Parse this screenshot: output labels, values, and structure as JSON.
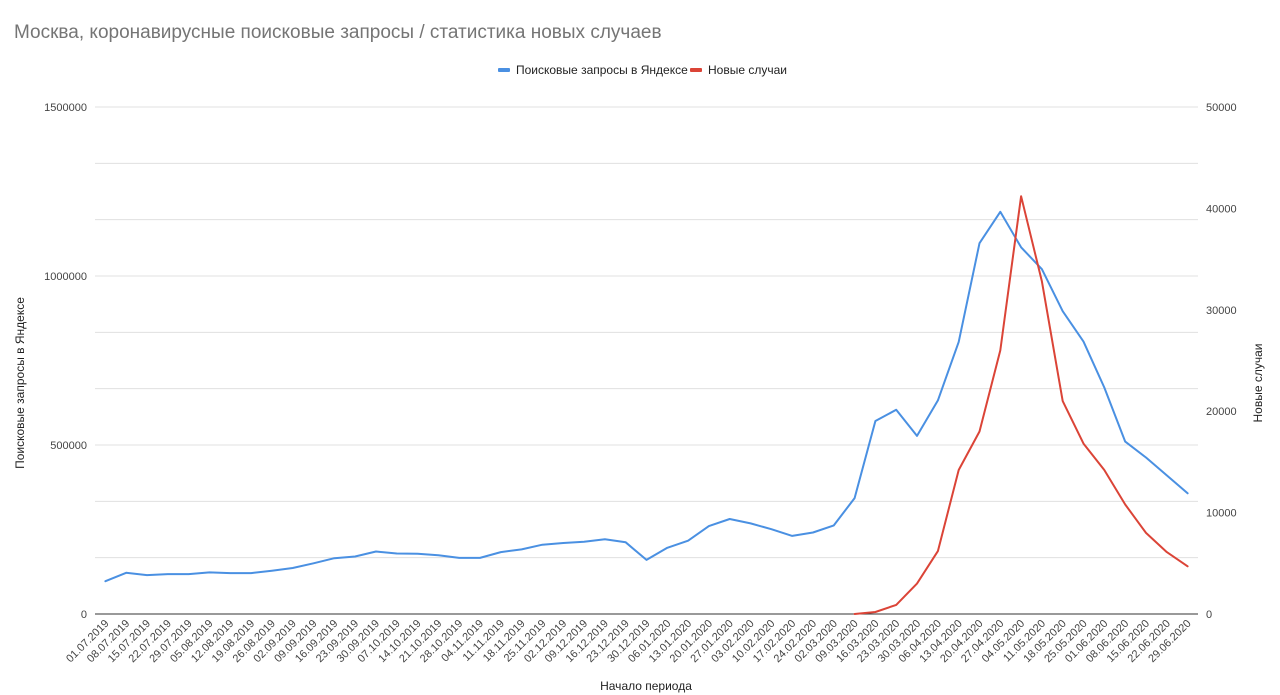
{
  "chart_data": {
    "type": "line",
    "title": "Москва, коронавирусные поисковые запросы / статистика новых случаев",
    "xlabel": "Начало периода",
    "ylabel_left": "Поисковые запросы в Яндексе",
    "ylabel_right": "Новые случаи",
    "ylim_left": [
      0,
      1500000
    ],
    "ylim_right": [
      0,
      50000
    ],
    "yticks_left": [
      "0",
      "500000",
      "1000000",
      "1500000"
    ],
    "yticks_right": [
      "0",
      "10000",
      "20000",
      "30000",
      "40000",
      "50000"
    ],
    "grid": true,
    "legend_position": "top",
    "colors": {
      "search": "#4a90e2",
      "cases": "#db4437",
      "grid": "#e0e0e0",
      "title": "#757575"
    },
    "categories": [
      "01.07.2019",
      "08.07.2019",
      "15.07.2019",
      "22.07.2019",
      "29.07.2019",
      "05.08.2019",
      "12.08.2019",
      "19.08.2019",
      "26.08.2019",
      "02.09.2019",
      "09.09.2019",
      "16.09.2019",
      "23.09.2019",
      "30.09.2019",
      "07.10.2019",
      "14.10.2019",
      "21.10.2019",
      "28.10.2019",
      "04.11.2019",
      "11.11.2019",
      "18.11.2019",
      "25.11.2019",
      "02.12.2019",
      "09.12.2019",
      "16.12.2019",
      "23.12.2019",
      "30.12.2019",
      "06.01.2020",
      "13.01.2020",
      "20.01.2020",
      "27.01.2020",
      "03.02.2020",
      "10.02.2020",
      "17.02.2020",
      "24.02.2020",
      "02.03.2020",
      "09.03.2020",
      "16.03.2020",
      "23.03.2020",
      "30.03.2020",
      "06.04.2020",
      "13.04.2020",
      "20.04.2020",
      "27.04.2020",
      "04.05.2020",
      "11.05.2020",
      "18.05.2020",
      "25.05.2020",
      "01.06.2020",
      "08.06.2020",
      "15.06.2020",
      "22.06.2020",
      "29.06.2020"
    ],
    "series": [
      {
        "name": "Поисковые запросы в Яндексе",
        "axis": "left",
        "values": [
          97000,
          122000,
          115000,
          118000,
          118000,
          123000,
          121000,
          121000,
          128000,
          136000,
          150000,
          165000,
          170000,
          185000,
          179000,
          178000,
          174000,
          166000,
          166000,
          183000,
          191000,
          205000,
          210000,
          214000,
          221000,
          212000,
          160000,
          196000,
          217000,
          260000,
          281000,
          268000,
          251000,
          231000,
          241000,
          262000,
          343000,
          571000,
          604000,
          527000,
          632000,
          805000,
          1097000,
          1190000,
          1085000,
          1020000,
          896000,
          806000,
          670000,
          510000,
          463000,
          410000,
          357000
        ]
      },
      {
        "name": "Новые случаи",
        "axis": "right",
        "values": [
          null,
          null,
          null,
          null,
          null,
          null,
          null,
          null,
          null,
          null,
          null,
          null,
          null,
          null,
          null,
          null,
          null,
          null,
          null,
          null,
          null,
          null,
          null,
          null,
          null,
          null,
          null,
          null,
          null,
          null,
          null,
          null,
          null,
          null,
          null,
          null,
          0,
          200,
          900,
          3000,
          6200,
          14200,
          18000,
          26000,
          41200,
          32800,
          21000,
          16800,
          14200,
          10800,
          8000,
          6100,
          4700
        ]
      }
    ]
  }
}
